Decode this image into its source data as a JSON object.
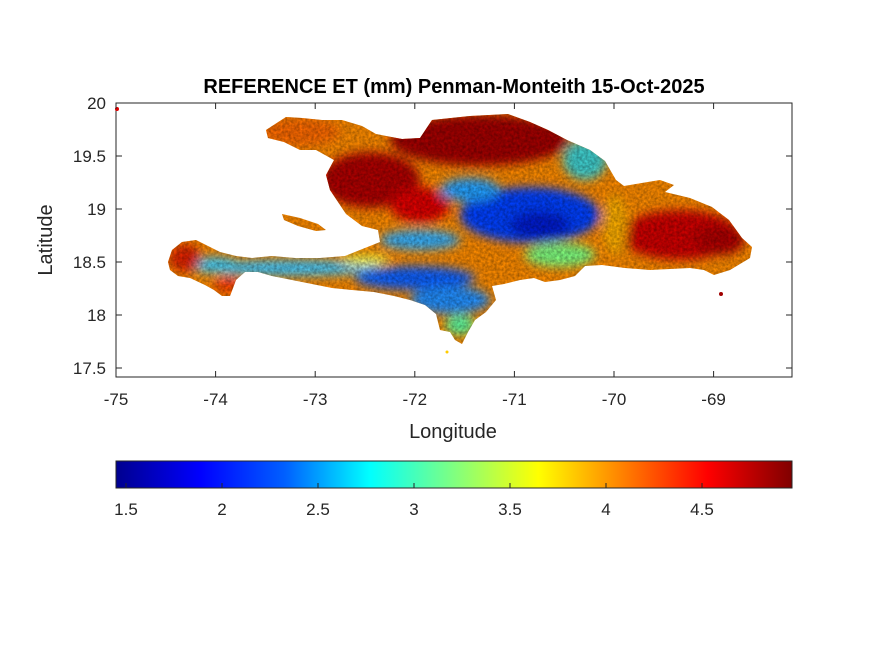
{
  "figure": {
    "title": "REFERENCE ET (mm) Penman-Monteith 15-Oct-2025",
    "xlabel": "Longitude",
    "ylabel": "Latitude"
  },
  "map": {
    "region": "Hispaniola",
    "variable": "Reference evapotranspiration (Penman-Monteith)",
    "units": "mm",
    "date": "15-Oct-2025",
    "x_ticks": [
      "-75",
      "-74",
      "-73",
      "-72",
      "-71",
      "-70",
      "-69"
    ],
    "y_ticks": [
      "20",
      "19.5",
      "19",
      "18.5",
      "18",
      "17.5"
    ],
    "xlim": [
      -75,
      -68.22
    ],
    "ylim": [
      17.43,
      20
    ],
    "colormap": "jet",
    "value_pattern": {
      "north_and_northwest_coast": "high (4.0-4.9)",
      "central_mountain_ranges": "low (1.5-3.0)",
      "southern_peninsula_ridge": "low (2.0-3.0)",
      "eastern_plain": "high (4.0-4.8)"
    }
  },
  "colorbar": {
    "range": [
      1.45,
      4.97
    ],
    "ticks": [
      "1.5",
      "2",
      "2.5",
      "3",
      "3.5",
      "4",
      "4.5"
    ],
    "colors": [
      "#00008f",
      "#0000ff",
      "#0080ff",
      "#00ffff",
      "#80ff80",
      "#ffff00",
      "#ff8000",
      "#ff0000",
      "#800000"
    ]
  }
}
